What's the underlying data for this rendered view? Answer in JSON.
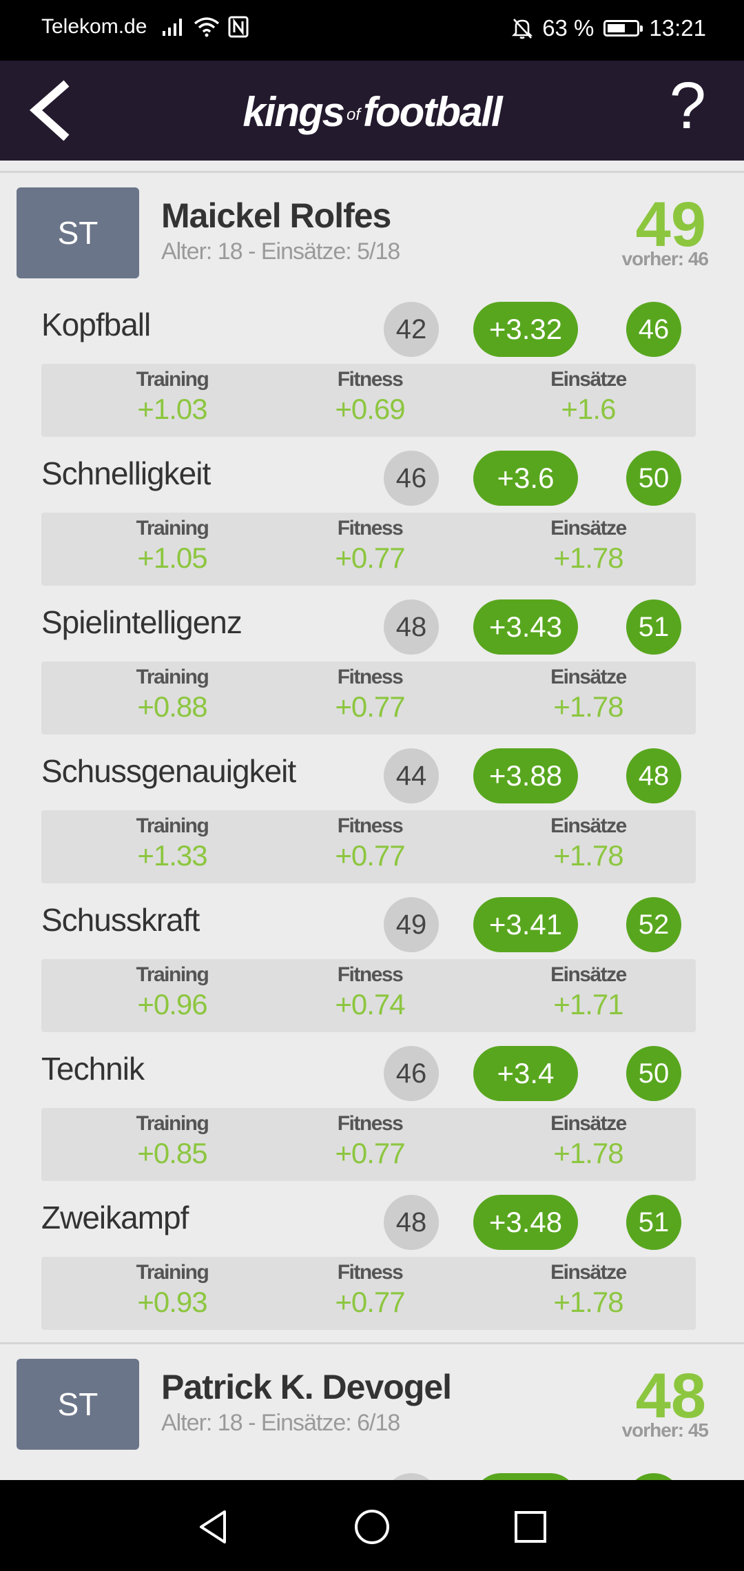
{
  "status_bar": {
    "carrier": "Telekom.de",
    "battery": "63 %",
    "battery_level": 0.63,
    "time": "13:21",
    "icons": [
      "signal-icon",
      "wifi-icon",
      "nfc-icon",
      "mute-bell-icon",
      "battery-icon"
    ]
  },
  "header": {
    "logo_part1": "kings",
    "logo_of": "of",
    "logo_part2": "football",
    "help": "?"
  },
  "players": [
    {
      "position": "ST",
      "name": "Maickel Rolfes",
      "sub": "Alter: 18 - Einsätze: 5/18",
      "rating": "49",
      "previous": "vorher: 46",
      "attributes": [
        {
          "name": "Kopfball",
          "old": "42",
          "gain": "+3.32",
          "new": "46",
          "training": "+1.03",
          "fitness": "+0.69",
          "einsaetze": "+1.6"
        },
        {
          "name": "Schnelligkeit",
          "old": "46",
          "gain": "+3.6",
          "new": "50",
          "training": "+1.05",
          "fitness": "+0.77",
          "einsaetze": "+1.78"
        },
        {
          "name": "Spielintelligenz",
          "old": "48",
          "gain": "+3.43",
          "new": "51",
          "training": "+0.88",
          "fitness": "+0.77",
          "einsaetze": "+1.78"
        },
        {
          "name": "Schussgenauigkeit",
          "old": "44",
          "gain": "+3.88",
          "new": "48",
          "training": "+1.33",
          "fitness": "+0.77",
          "einsaetze": "+1.78"
        },
        {
          "name": "Schusskraft",
          "old": "49",
          "gain": "+3.41",
          "new": "52",
          "training": "+0.96",
          "fitness": "+0.74",
          "einsaetze": "+1.71"
        },
        {
          "name": "Technik",
          "old": "46",
          "gain": "+3.4",
          "new": "50",
          "training": "+0.85",
          "fitness": "+0.77",
          "einsaetze": "+1.78"
        },
        {
          "name": "Zweikampf",
          "old": "48",
          "gain": "+3.48",
          "new": "51",
          "training": "+0.93",
          "fitness": "+0.77",
          "einsaetze": "+1.78"
        }
      ]
    },
    {
      "position": "ST",
      "name": "Patrick K. Devogel",
      "sub": "Alter: 18 - Einsätze: 6/18",
      "rating": "48",
      "previous": "vorher: 45"
    }
  ],
  "labels": {
    "training": "Training",
    "fitness": "Fitness",
    "einsaetze": "Einsätze"
  },
  "colors": {
    "header_bg": "#231a2e",
    "accent_green": "#58a61e",
    "value_green": "#8cc63f",
    "badge_grey": "#6b7589"
  }
}
